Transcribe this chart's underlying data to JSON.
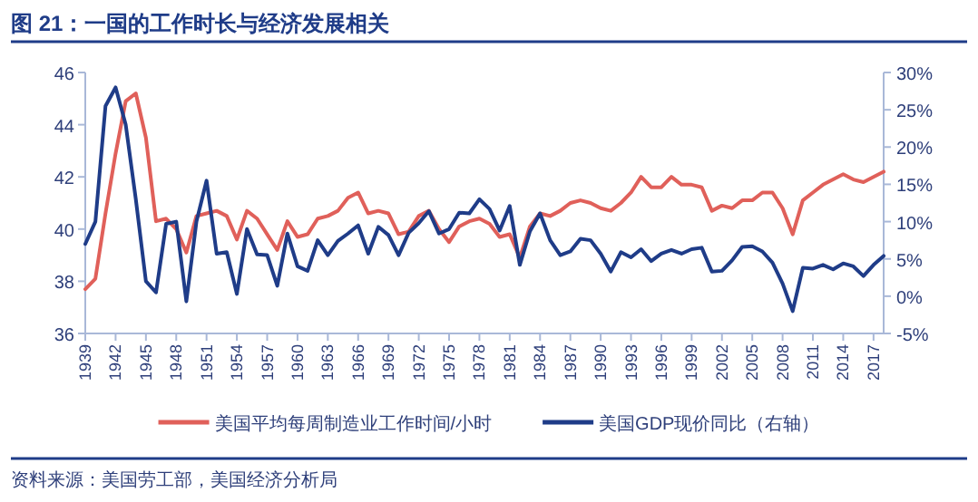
{
  "chart_data": {
    "type": "line",
    "title": "图 21：一国的工作时长与经济发展相关",
    "annotations": [
      "资料来源：美国劳工部，美国经济分析局"
    ],
    "x": [
      1939,
      1940,
      1941,
      1942,
      1943,
      1944,
      1945,
      1946,
      1947,
      1948,
      1949,
      1950,
      1951,
      1952,
      1953,
      1954,
      1955,
      1956,
      1957,
      1958,
      1959,
      1960,
      1961,
      1962,
      1963,
      1964,
      1965,
      1966,
      1967,
      1968,
      1969,
      1970,
      1971,
      1972,
      1973,
      1974,
      1975,
      1976,
      1977,
      1978,
      1979,
      1980,
      1981,
      1982,
      1983,
      1984,
      1985,
      1986,
      1987,
      1988,
      1989,
      1990,
      1991,
      1992,
      1993,
      1994,
      1995,
      1996,
      1997,
      1998,
      1999,
      2000,
      2001,
      2002,
      2003,
      2004,
      2005,
      2006,
      2007,
      2008,
      2009,
      2010,
      2011,
      2012,
      2013,
      2014,
      2015,
      2016,
      2017,
      2018
    ],
    "series": [
      {
        "name": "美国平均每周制造业工作时间/小时",
        "color": "#e0605a",
        "values": [
          37.7,
          38.1,
          40.6,
          42.9,
          44.9,
          45.2,
          43.5,
          40.3,
          40.4,
          40.0,
          39.1,
          40.5,
          40.6,
          40.7,
          40.5,
          39.6,
          40.7,
          40.4,
          39.8,
          39.2,
          40.3,
          39.7,
          39.8,
          40.4,
          40.5,
          40.7,
          41.2,
          41.4,
          40.6,
          40.7,
          40.6,
          39.8,
          39.9,
          40.5,
          40.7,
          40.0,
          39.5,
          40.1,
          40.3,
          40.4,
          40.2,
          39.7,
          39.8,
          38.9,
          40.1,
          40.6,
          40.5,
          40.7,
          41.0,
          41.1,
          41.0,
          40.8,
          40.7,
          41.0,
          41.4,
          42.0,
          41.6,
          41.6,
          42.0,
          41.7,
          41.7,
          41.6,
          40.7,
          40.9,
          40.8,
          41.1,
          41.1,
          41.4,
          41.4,
          40.8,
          39.8,
          41.1,
          41.4,
          41.7,
          41.9,
          42.1,
          41.9,
          41.8,
          42.0,
          42.2
        ]
      },
      {
        "name": "美国GDP现价同比（右轴）",
        "color": "#1f3c88",
        "axis": "y2",
        "values": [
          7,
          10,
          25.5,
          28,
          23,
          13,
          2,
          0.5,
          9.7,
          10,
          -0.7,
          10,
          15.5,
          5.7,
          5.9,
          0.3,
          9,
          5.6,
          5.5,
          1.4,
          8.4,
          4,
          3.4,
          7.5,
          5.5,
          7.4,
          8.4,
          9.5,
          5.7,
          9.3,
          8.2,
          5.5,
          8.5,
          9.8,
          11.4,
          8.4,
          9,
          11.2,
          11.1,
          13,
          11.7,
          8.8,
          12.1,
          4.2,
          8.7,
          11.1,
          7.5,
          5.5,
          6.0,
          7.7,
          7.5,
          5.7,
          3.3,
          5.9,
          5.2,
          6.3,
          4.7,
          5.7,
          6.2,
          5.7,
          6.3,
          6.5,
          3.3,
          3.4,
          4.8,
          6.6,
          6.7,
          6.0,
          4.5,
          1.7,
          -2,
          3.8,
          3.7,
          4.2,
          3.6,
          4.4,
          4.0,
          2.7,
          4.2,
          5.4
        ]
      }
    ],
    "xlim": [
      1939,
      2018
    ],
    "xticks": [
      1939,
      1942,
      1945,
      1948,
      1951,
      1954,
      1957,
      1960,
      1963,
      1966,
      1969,
      1972,
      1975,
      1978,
      1981,
      1984,
      1987,
      1990,
      1993,
      1996,
      1999,
      2002,
      2005,
      2008,
      2011,
      2014,
      2017
    ],
    "ylim": [
      36,
      46
    ],
    "yticks": [
      36,
      38,
      40,
      42,
      44,
      46
    ],
    "y2lim": [
      -5,
      30
    ],
    "y2ticks": [
      {
        "value": -5,
        "label": "-5%"
      },
      {
        "value": 0,
        "label": "0%"
      },
      {
        "value": 5,
        "label": "5%"
      },
      {
        "value": 10,
        "label": "10%"
      },
      {
        "value": 15,
        "label": "15%"
      },
      {
        "value": 20,
        "label": "20%"
      },
      {
        "value": 25,
        "label": "25%"
      },
      {
        "value": 30,
        "label": "30%"
      }
    ],
    "legend": "bottom"
  }
}
